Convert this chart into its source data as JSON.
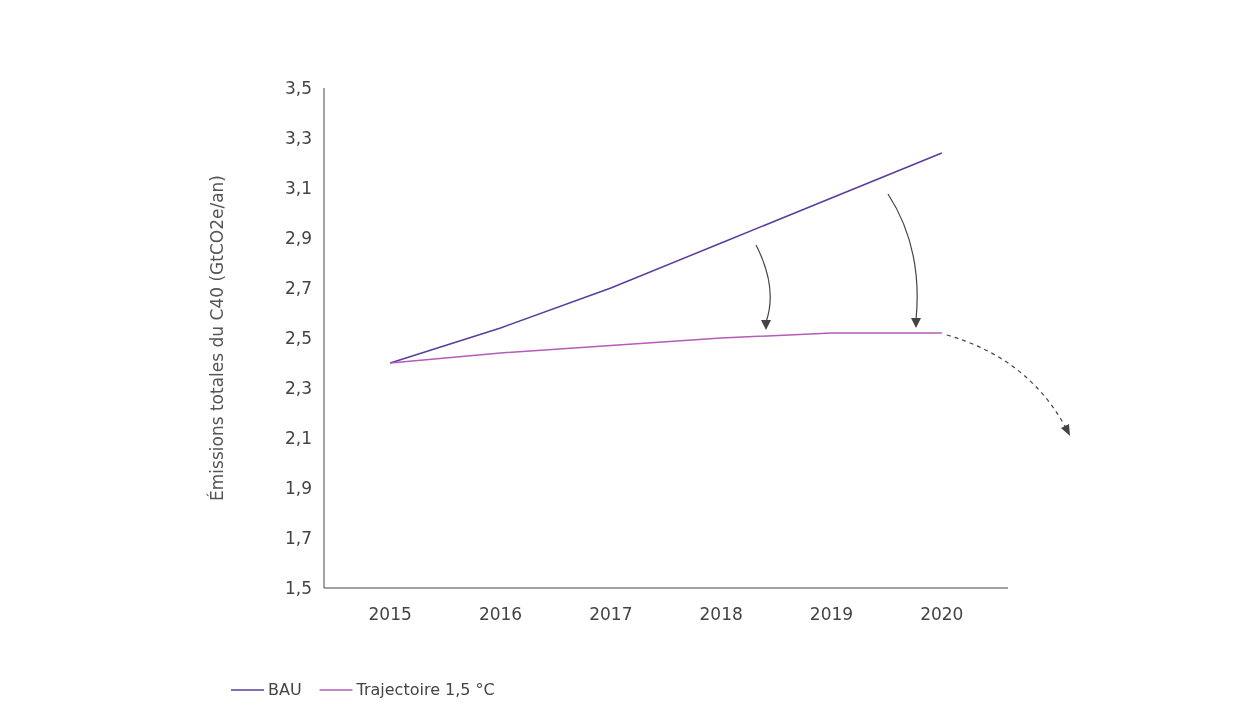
{
  "chart_data": {
    "type": "line",
    "ylabel": "Émissions totales du C40 (GtCO2e/an)",
    "categories": [
      "2015",
      "2016",
      "2017",
      "2018",
      "2019",
      "2020"
    ],
    "series": [
      {
        "name": "BAU",
        "color": "#5a3c9c",
        "values": [
          2.4,
          2.54,
          2.7,
          2.88,
          3.06,
          3.24
        ]
      },
      {
        "name": "Trajectoire 1,5 °C",
        "color": "#b45cb8",
        "values": [
          2.4,
          2.44,
          2.47,
          2.5,
          2.52,
          2.52
        ]
      }
    ],
    "ylim": [
      1.5,
      3.5
    ],
    "yticks": [
      {
        "value": 1.5,
        "label": "1,5"
      },
      {
        "value": 1.7,
        "label": "1,7"
      },
      {
        "value": 1.9,
        "label": "1,9"
      },
      {
        "value": 2.1,
        "label": "2,1"
      },
      {
        "value": 2.3,
        "label": "2,3"
      },
      {
        "value": 2.5,
        "label": "2,5"
      },
      {
        "value": 2.7,
        "label": "2,7"
      },
      {
        "value": 2.9,
        "label": "2,9"
      },
      {
        "value": 3.1,
        "label": "3,1"
      },
      {
        "value": 3.3,
        "label": "3,3"
      },
      {
        "value": 3.5,
        "label": "3,5"
      }
    ],
    "legend": "bottom left",
    "grid": false,
    "marker": "none",
    "line_style": "solid"
  }
}
